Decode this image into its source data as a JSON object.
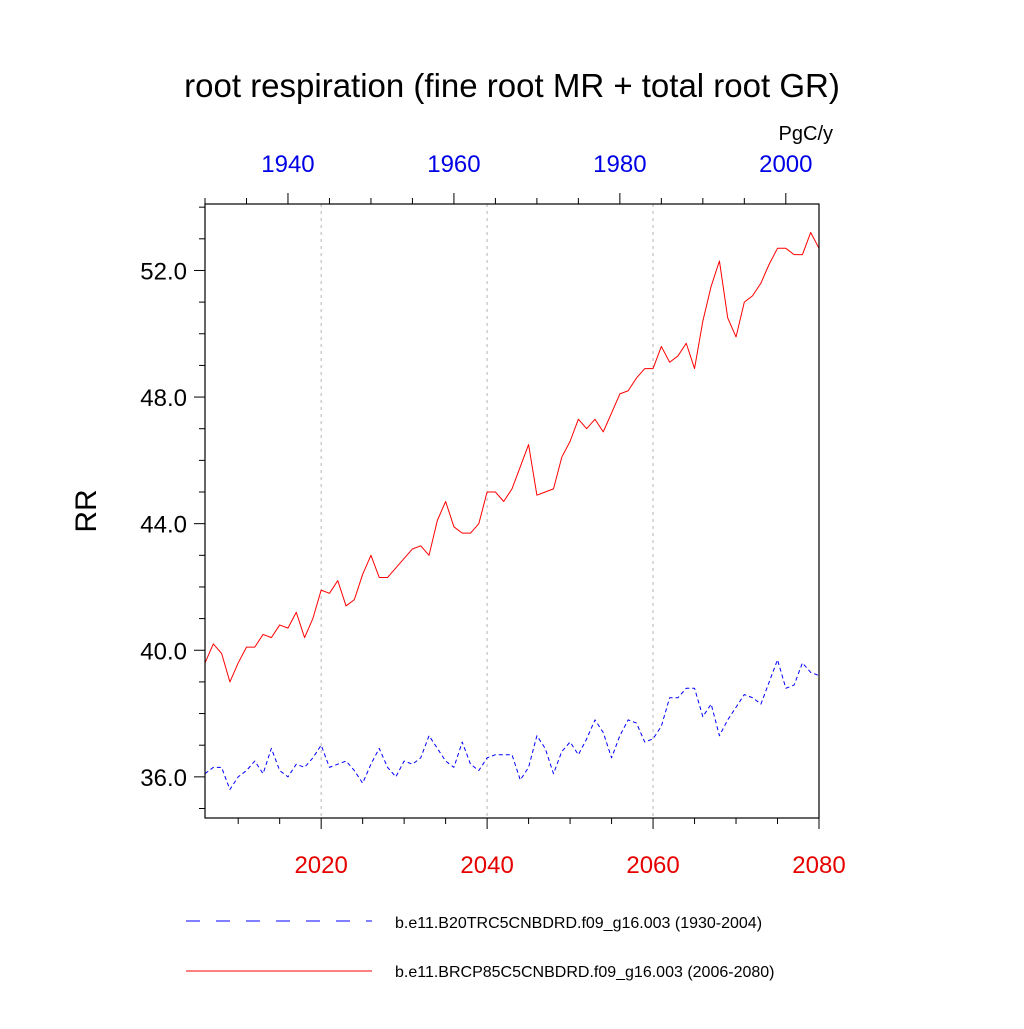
{
  "chart_data": {
    "type": "line",
    "title": "root respiration (fine root MR + total root GR)",
    "ylabel": "RR",
    "units": "PgC/y",
    "ylim": [
      34.7,
      54.1
    ],
    "yticks": [
      36.0,
      40.0,
      44.0,
      48.0,
      52.0
    ],
    "ytick_labels": [
      "36.0",
      "40.0",
      "44.0",
      "48.0",
      "52.0"
    ],
    "grid": "vertical dotted at bottom-axis major ticks",
    "bottom_axis": {
      "range": [
        2006,
        2080
      ],
      "ticks": [
        2020,
        2040,
        2060,
        2080
      ],
      "tick_labels": [
        "2020",
        "2040",
        "2060",
        "2080"
      ],
      "color": "#e60000"
    },
    "top_axis": {
      "range": [
        1930,
        2004
      ],
      "ticks": [
        1940,
        1960,
        1980,
        2000
      ],
      "tick_labels": [
        "1940",
        "1960",
        "1980",
        "2000"
      ],
      "color": "#0000e6"
    },
    "legend_position": "bottom",
    "series": [
      {
        "name": "b.e11.B20TRC5CNBDRD.f09_g16.003 (1930-2004)",
        "color": "#0000ff",
        "style": "dashed",
        "axis": "top",
        "x": [
          1930,
          1931,
          1932,
          1933,
          1934,
          1935,
          1936,
          1937,
          1938,
          1939,
          1940,
          1941,
          1942,
          1943,
          1944,
          1945,
          1946,
          1947,
          1948,
          1949,
          1950,
          1951,
          1952,
          1953,
          1954,
          1955,
          1956,
          1957,
          1958,
          1959,
          1960,
          1961,
          1962,
          1963,
          1964,
          1965,
          1966,
          1967,
          1968,
          1969,
          1970,
          1971,
          1972,
          1973,
          1974,
          1975,
          1976,
          1977,
          1978,
          1979,
          1980,
          1981,
          1982,
          1983,
          1984,
          1985,
          1986,
          1987,
          1988,
          1989,
          1990,
          1991,
          1992,
          1993,
          1994,
          1995,
          1996,
          1997,
          1998,
          1999,
          2000,
          2001,
          2002,
          2003,
          2004
        ],
        "y": [
          36.1,
          36.3,
          36.3,
          35.6,
          36.0,
          36.2,
          36.5,
          36.1,
          36.9,
          36.2,
          36.0,
          36.4,
          36.3,
          36.6,
          37.0,
          36.3,
          36.4,
          36.5,
          36.2,
          35.8,
          36.4,
          36.9,
          36.3,
          36.0,
          36.5,
          36.4,
          36.6,
          37.3,
          36.9,
          36.5,
          36.3,
          37.1,
          36.4,
          36.2,
          36.6,
          36.7,
          36.7,
          36.7,
          35.9,
          36.3,
          37.3,
          36.9,
          36.1,
          36.8,
          37.1,
          36.7,
          37.2,
          37.8,
          37.4,
          36.6,
          37.3,
          37.8,
          37.7,
          37.1,
          37.2,
          37.6,
          38.5,
          38.5,
          38.8,
          38.8,
          37.9,
          38.3,
          37.3,
          37.8,
          38.2,
          38.6,
          38.5,
          38.3,
          39.0,
          39.7,
          38.8,
          38.9,
          39.6,
          39.3,
          39.2
        ]
      },
      {
        "name": "b.e11.BRCP85C5CNBDRD.f09_g16.003 (2006-2080)",
        "color": "#ff0000",
        "style": "solid",
        "axis": "bottom",
        "x": [
          2006,
          2007,
          2008,
          2009,
          2010,
          2011,
          2012,
          2013,
          2014,
          2015,
          2016,
          2017,
          2018,
          2019,
          2020,
          2021,
          2022,
          2023,
          2024,
          2025,
          2026,
          2027,
          2028,
          2029,
          2030,
          2031,
          2032,
          2033,
          2034,
          2035,
          2036,
          2037,
          2038,
          2039,
          2040,
          2041,
          2042,
          2043,
          2044,
          2045,
          2046,
          2047,
          2048,
          2049,
          2050,
          2051,
          2052,
          2053,
          2054,
          2055,
          2056,
          2057,
          2058,
          2059,
          2060,
          2061,
          2062,
          2063,
          2064,
          2065,
          2066,
          2067,
          2068,
          2069,
          2070,
          2071,
          2072,
          2073,
          2074,
          2075,
          2076,
          2077,
          2078,
          2079,
          2080
        ],
        "y": [
          39.6,
          40.2,
          39.9,
          39.0,
          39.6,
          40.1,
          40.1,
          40.5,
          40.4,
          40.8,
          40.7,
          41.2,
          40.4,
          41.0,
          41.9,
          41.8,
          42.2,
          41.4,
          41.6,
          42.4,
          43.0,
          42.3,
          42.3,
          42.6,
          42.9,
          43.2,
          43.3,
          43.0,
          44.1,
          44.7,
          43.9,
          43.7,
          43.7,
          44.0,
          45.0,
          45.0,
          44.7,
          45.1,
          45.8,
          46.5,
          44.9,
          45.0,
          45.1,
          46.1,
          46.6,
          47.3,
          47.0,
          47.3,
          46.9,
          47.5,
          48.1,
          48.2,
          48.6,
          48.9,
          48.9,
          49.6,
          49.1,
          49.3,
          49.7,
          48.9,
          50.4,
          51.5,
          52.3,
          50.5,
          49.9,
          51.0,
          51.2,
          51.6,
          52.2,
          52.7,
          52.7,
          52.5,
          52.5,
          53.2,
          52.7
        ]
      }
    ]
  }
}
